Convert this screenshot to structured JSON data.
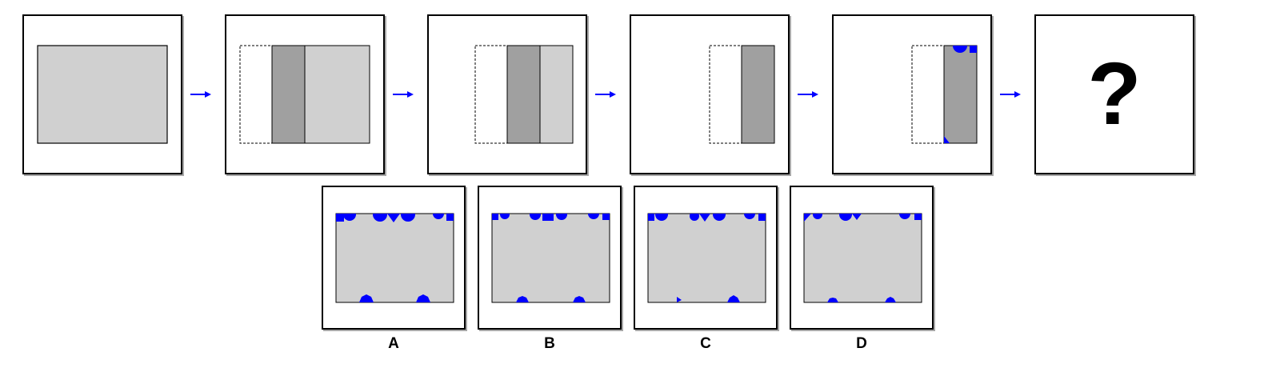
{
  "question_mark": "?",
  "options": [
    {
      "label": "A"
    },
    {
      "label": "B"
    },
    {
      "label": "C"
    },
    {
      "label": "D"
    }
  ],
  "colors": {
    "light_gray": "#d0d0d0",
    "dark_gray": "#a0a0a0",
    "accent_blue": "#0000ff",
    "border": "#000000"
  }
}
